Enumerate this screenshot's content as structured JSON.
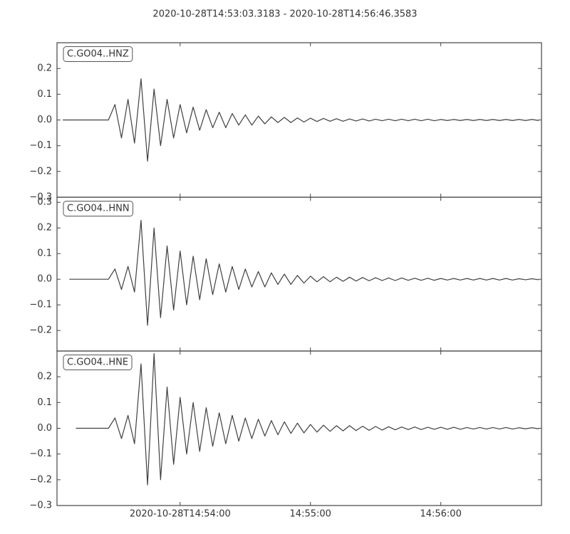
{
  "title": "2020-10-28T14:53:03.3183  -  2020-10-28T14:56:46.3583",
  "chart_data": [
    {
      "type": "line",
      "xlim": [
        "2020-10-28T14:53:03.3183",
        "2020-10-28T14:56:46.3583"
      ],
      "ylim": [
        -0.3,
        0.3
      ],
      "yticks": [
        {
          "value": -0.3,
          "label": "−0.3"
        },
        {
          "value": -0.2,
          "label": "−0.2"
        },
        {
          "value": -0.1,
          "label": "−0.1"
        },
        {
          "value": 0,
          "label": "0.0"
        },
        {
          "value": 0.1,
          "label": "0.1"
        },
        {
          "value": 0.2,
          "label": "0.2"
        }
      ],
      "x": [
        "2020-10-28T14:53:06",
        "2020-10-28T14:53:09",
        "2020-10-28T14:53:12",
        "2020-10-28T14:53:15",
        "2020-10-28T14:53:18",
        "2020-10-28T14:53:21",
        "2020-10-28T14:53:24",
        "2020-10-28T14:53:27",
        "2020-10-28T14:53:30",
        "2020-10-28T14:53:33",
        "2020-10-28T14:53:36",
        "2020-10-28T14:53:39",
        "2020-10-28T14:53:42",
        "2020-10-28T14:53:45",
        "2020-10-28T14:53:48",
        "2020-10-28T14:53:51",
        "2020-10-28T14:53:54",
        "2020-10-28T14:53:57",
        "2020-10-28T14:54:00",
        "2020-10-28T14:54:03",
        "2020-10-28T14:54:06",
        "2020-10-28T14:54:09",
        "2020-10-28T14:54:12",
        "2020-10-28T14:54:15",
        "2020-10-28T14:54:18",
        "2020-10-28T14:54:21",
        "2020-10-28T14:54:24",
        "2020-10-28T14:54:27",
        "2020-10-28T14:54:30",
        "2020-10-28T14:54:33",
        "2020-10-28T14:54:36",
        "2020-10-28T14:54:39",
        "2020-10-28T14:54:42",
        "2020-10-28T14:54:45",
        "2020-10-28T14:54:48",
        "2020-10-28T14:54:51",
        "2020-10-28T14:54:54",
        "2020-10-28T14:54:57",
        "2020-10-28T14:55:00",
        "2020-10-28T14:55:03",
        "2020-10-28T14:55:06",
        "2020-10-28T14:55:09",
        "2020-10-28T14:55:12",
        "2020-10-28T14:55:15",
        "2020-10-28T14:55:18",
        "2020-10-28T14:55:21",
        "2020-10-28T14:55:24",
        "2020-10-28T14:55:27",
        "2020-10-28T14:55:30",
        "2020-10-28T14:55:33",
        "2020-10-28T14:55:36",
        "2020-10-28T14:55:39",
        "2020-10-28T14:55:42",
        "2020-10-28T14:55:45",
        "2020-10-28T14:55:48",
        "2020-10-28T14:55:51",
        "2020-10-28T14:55:54",
        "2020-10-28T14:55:57",
        "2020-10-28T14:56:00",
        "2020-10-28T14:56:03",
        "2020-10-28T14:56:06",
        "2020-10-28T14:56:09",
        "2020-10-28T14:56:12",
        "2020-10-28T14:56:15",
        "2020-10-28T14:56:18",
        "2020-10-28T14:56:21",
        "2020-10-28T14:56:24",
        "2020-10-28T14:56:27",
        "2020-10-28T14:56:30",
        "2020-10-28T14:56:33",
        "2020-10-28T14:56:36",
        "2020-10-28T14:56:39",
        "2020-10-28T14:56:42",
        "2020-10-28T14:56:45"
      ],
      "series": [
        {
          "name": "C.GO04..HNZ",
          "color": "#404040",
          "values": [
            0,
            0,
            0,
            0,
            0,
            0,
            0,
            0,
            0.06,
            -0.07,
            0.08,
            -0.09,
            0.16,
            -0.16,
            0.12,
            -0.1,
            0.08,
            -0.07,
            0.06,
            -0.05,
            0.05,
            -0.04,
            0.04,
            -0.03,
            0.03,
            -0.03,
            0.025,
            -0.02,
            0.02,
            -0.02,
            0.015,
            -0.015,
            0.012,
            -0.01,
            0.01,
            -0.01,
            0.008,
            -0.008,
            0.007,
            -0.006,
            0.006,
            -0.005,
            0.005,
            -0.005,
            0.004,
            -0.004,
            0.004,
            -0.004,
            0.003,
            -0.003,
            0.003,
            -0.003,
            0.003,
            -0.003,
            0.003,
            -0.003,
            0.003,
            -0.003,
            0.002,
            -0.002,
            0.002,
            -0.002,
            0.002,
            -0.002,
            0.002,
            -0.002,
            0.002,
            -0.002,
            0.002,
            -0.002,
            0.002,
            -0.002,
            0.002,
            -0.002
          ]
        }
      ]
    },
    {
      "type": "line",
      "xlim": [
        "2020-10-28T14:53:03.3183",
        "2020-10-28T14:56:46.3583"
      ],
      "ylim": [
        -0.28,
        0.32
      ],
      "yticks": [
        {
          "value": -0.2,
          "label": "−0.2"
        },
        {
          "value": -0.1,
          "label": "−0.1"
        },
        {
          "value": 0,
          "label": "0.0"
        },
        {
          "value": 0.1,
          "label": "0.1"
        },
        {
          "value": 0.2,
          "label": "0.2"
        },
        {
          "value": 0.3,
          "label": "0.3"
        }
      ],
      "x": [
        "2020-10-28T14:53:06",
        "2020-10-28T14:53:09",
        "2020-10-28T14:53:12",
        "2020-10-28T14:53:15",
        "2020-10-28T14:53:18",
        "2020-10-28T14:53:21",
        "2020-10-28T14:53:24",
        "2020-10-28T14:53:27",
        "2020-10-28T14:53:30",
        "2020-10-28T14:53:33",
        "2020-10-28T14:53:36",
        "2020-10-28T14:53:39",
        "2020-10-28T14:53:42",
        "2020-10-28T14:53:45",
        "2020-10-28T14:53:48",
        "2020-10-28T14:53:51",
        "2020-10-28T14:53:54",
        "2020-10-28T14:53:57",
        "2020-10-28T14:54:00",
        "2020-10-28T14:54:03",
        "2020-10-28T14:54:06",
        "2020-10-28T14:54:09",
        "2020-10-28T14:54:12",
        "2020-10-28T14:54:15",
        "2020-10-28T14:54:18",
        "2020-10-28T14:54:21",
        "2020-10-28T14:54:24",
        "2020-10-28T14:54:27",
        "2020-10-28T14:54:30",
        "2020-10-28T14:54:33",
        "2020-10-28T14:54:36",
        "2020-10-28T14:54:39",
        "2020-10-28T14:54:42",
        "2020-10-28T14:54:45",
        "2020-10-28T14:54:48",
        "2020-10-28T14:54:51",
        "2020-10-28T14:54:54",
        "2020-10-28T14:54:57",
        "2020-10-28T14:55:00",
        "2020-10-28T14:55:03",
        "2020-10-28T14:55:06",
        "2020-10-28T14:55:09",
        "2020-10-28T14:55:12",
        "2020-10-28T14:55:15",
        "2020-10-28T14:55:18",
        "2020-10-28T14:55:21",
        "2020-10-28T14:55:24",
        "2020-10-28T14:55:27",
        "2020-10-28T14:55:30",
        "2020-10-28T14:55:33",
        "2020-10-28T14:55:36",
        "2020-10-28T14:55:39",
        "2020-10-28T14:55:42",
        "2020-10-28T14:55:45",
        "2020-10-28T14:55:48",
        "2020-10-28T14:55:51",
        "2020-10-28T14:55:54",
        "2020-10-28T14:55:57",
        "2020-10-28T14:56:00",
        "2020-10-28T14:56:03",
        "2020-10-28T14:56:06",
        "2020-10-28T14:56:09",
        "2020-10-28T14:56:12",
        "2020-10-28T14:56:15",
        "2020-10-28T14:56:18",
        "2020-10-28T14:56:21",
        "2020-10-28T14:56:24",
        "2020-10-28T14:56:27",
        "2020-10-28T14:56:30",
        "2020-10-28T14:56:33",
        "2020-10-28T14:56:36",
        "2020-10-28T14:56:39",
        "2020-10-28T14:56:42",
        "2020-10-28T14:56:45"
      ],
      "series": [
        {
          "name": "C.GO04..HNN",
          "color": "#404040",
          "values": [
            null,
            0,
            0,
            0,
            0,
            0,
            0,
            0,
            0.04,
            -0.04,
            0.05,
            -0.05,
            0.23,
            -0.18,
            0.2,
            -0.15,
            0.13,
            -0.12,
            0.11,
            -0.1,
            0.09,
            -0.08,
            0.08,
            -0.06,
            0.06,
            -0.05,
            0.05,
            -0.04,
            0.04,
            -0.03,
            0.03,
            -0.03,
            0.025,
            -0.02,
            0.02,
            -0.02,
            0.015,
            -0.015,
            0.012,
            -0.01,
            0.01,
            -0.01,
            0.008,
            -0.008,
            0.008,
            -0.007,
            0.007,
            -0.006,
            0.006,
            -0.005,
            0.005,
            -0.005,
            0.005,
            -0.004,
            0.004,
            -0.004,
            0.004,
            -0.004,
            0.003,
            -0.003,
            0.003,
            -0.003,
            0.003,
            -0.003,
            0.003,
            -0.003,
            0.003,
            -0.003,
            0.003,
            -0.003,
            0.002,
            -0.002,
            0.002,
            -0.002
          ]
        }
      ]
    },
    {
      "type": "line",
      "xlim": [
        "2020-10-28T14:53:03.3183",
        "2020-10-28T14:56:46.3583"
      ],
      "ylim": [
        -0.3,
        0.3
      ],
      "yticks": [
        {
          "value": -0.3,
          "label": "−0.3"
        },
        {
          "value": -0.2,
          "label": "−0.2"
        },
        {
          "value": -0.1,
          "label": "−0.1"
        },
        {
          "value": 0,
          "label": "0.0"
        },
        {
          "value": 0.1,
          "label": "0.1"
        },
        {
          "value": 0.2,
          "label": "0.2"
        }
      ],
      "xticks": [
        {
          "value": "2020-10-28T14:54:00",
          "label": "2020-10-28T14:54:00"
        },
        {
          "value": "2020-10-28T14:55:00",
          "label": "14:55:00"
        },
        {
          "value": "2020-10-28T14:56:00",
          "label": "14:56:00"
        }
      ],
      "x": [
        "2020-10-28T14:53:06",
        "2020-10-28T14:53:09",
        "2020-10-28T14:53:12",
        "2020-10-28T14:53:15",
        "2020-10-28T14:53:18",
        "2020-10-28T14:53:21",
        "2020-10-28T14:53:24",
        "2020-10-28T14:53:27",
        "2020-10-28T14:53:30",
        "2020-10-28T14:53:33",
        "2020-10-28T14:53:36",
        "2020-10-28T14:53:39",
        "2020-10-28T14:53:42",
        "2020-10-28T14:53:45",
        "2020-10-28T14:53:48",
        "2020-10-28T14:53:51",
        "2020-10-28T14:53:54",
        "2020-10-28T14:53:57",
        "2020-10-28T14:54:00",
        "2020-10-28T14:54:03",
        "2020-10-28T14:54:06",
        "2020-10-28T14:54:09",
        "2020-10-28T14:54:12",
        "2020-10-28T14:54:15",
        "2020-10-28T14:54:18",
        "2020-10-28T14:54:21",
        "2020-10-28T14:54:24",
        "2020-10-28T14:54:27",
        "2020-10-28T14:54:30",
        "2020-10-28T14:54:33",
        "2020-10-28T14:54:36",
        "2020-10-28T14:54:39",
        "2020-10-28T14:54:42",
        "2020-10-28T14:54:45",
        "2020-10-28T14:54:48",
        "2020-10-28T14:54:51",
        "2020-10-28T14:54:54",
        "2020-10-28T14:54:57",
        "2020-10-28T14:55:00",
        "2020-10-28T14:55:03",
        "2020-10-28T14:55:06",
        "2020-10-28T14:55:09",
        "2020-10-28T14:55:12",
        "2020-10-28T14:55:15",
        "2020-10-28T14:55:18",
        "2020-10-28T14:55:21",
        "2020-10-28T14:55:24",
        "2020-10-28T14:55:27",
        "2020-10-28T14:55:30",
        "2020-10-28T14:55:33",
        "2020-10-28T14:55:36",
        "2020-10-28T14:55:39",
        "2020-10-28T14:55:42",
        "2020-10-28T14:55:45",
        "2020-10-28T14:55:48",
        "2020-10-28T14:55:51",
        "2020-10-28T14:55:54",
        "2020-10-28T14:55:57",
        "2020-10-28T14:56:00",
        "2020-10-28T14:56:03",
        "2020-10-28T14:56:06",
        "2020-10-28T14:56:09",
        "2020-10-28T14:56:12",
        "2020-10-28T14:56:15",
        "2020-10-28T14:56:18",
        "2020-10-28T14:56:21",
        "2020-10-28T14:56:24",
        "2020-10-28T14:56:27",
        "2020-10-28T14:56:30",
        "2020-10-28T14:56:33",
        "2020-10-28T14:56:36",
        "2020-10-28T14:56:39",
        "2020-10-28T14:56:42",
        "2020-10-28T14:56:45"
      ],
      "series": [
        {
          "name": "C.GO04..HNE",
          "color": "#404040",
          "values": [
            null,
            null,
            0,
            0,
            0,
            0,
            0,
            0,
            0.04,
            -0.04,
            0.05,
            -0.06,
            0.25,
            -0.22,
            0.29,
            -0.2,
            0.16,
            -0.14,
            0.12,
            -0.1,
            0.1,
            -0.09,
            0.08,
            -0.07,
            0.06,
            -0.06,
            0.05,
            -0.05,
            0.04,
            -0.04,
            0.035,
            -0.03,
            0.03,
            -0.025,
            0.025,
            -0.02,
            0.02,
            -0.018,
            0.015,
            -0.015,
            0.012,
            -0.012,
            0.01,
            -0.01,
            0.01,
            -0.009,
            0.008,
            -0.008,
            0.007,
            -0.007,
            0.006,
            -0.006,
            0.005,
            -0.005,
            0.005,
            -0.005,
            0.004,
            -0.004,
            0.004,
            -0.004,
            0.004,
            -0.004,
            0.003,
            -0.003,
            0.003,
            -0.003,
            0.003,
            -0.003,
            0.003,
            -0.003,
            0.002,
            -0.002,
            0.002,
            -0.002
          ]
        }
      ]
    }
  ]
}
